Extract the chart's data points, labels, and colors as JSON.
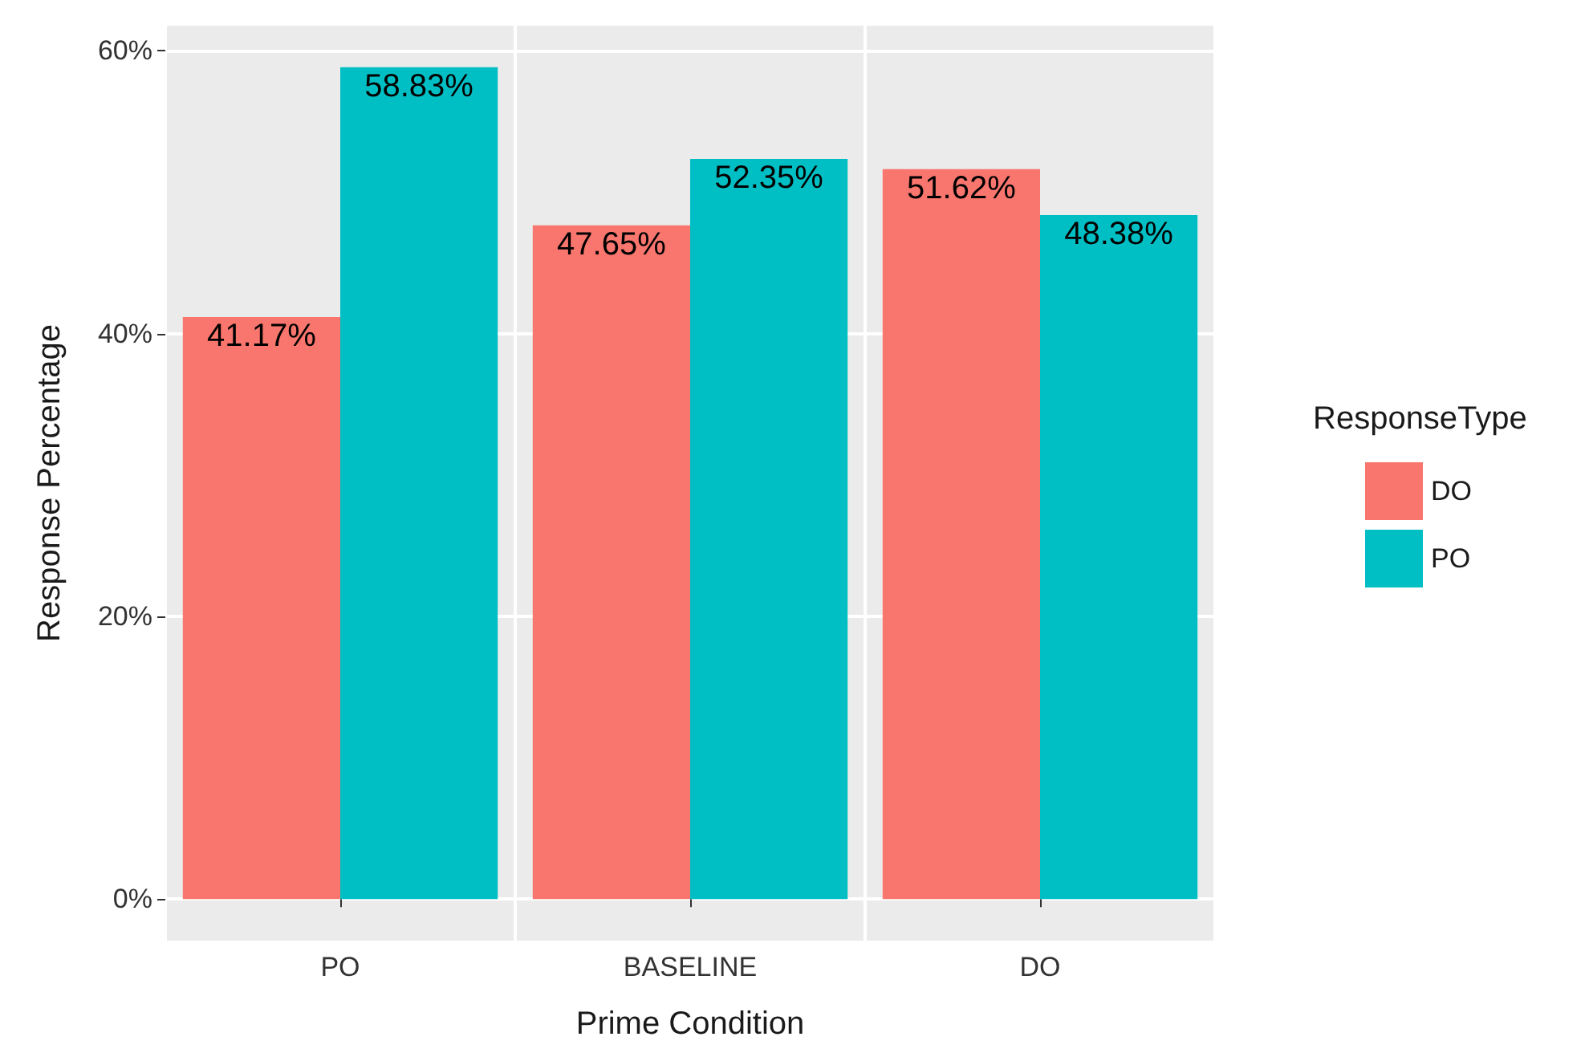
{
  "chart_data": {
    "type": "bar",
    "xlabel": "Prime Condition",
    "ylabel": "Response Percentage",
    "legend_title": "ResponseType",
    "categories": [
      "PO",
      "BASELINE",
      "DO"
    ],
    "series": [
      {
        "name": "DO",
        "color": "#f8766d",
        "values": [
          41.17,
          47.65,
          51.62
        ],
        "value_labels": [
          "41.17%",
          "47.65%",
          "51.62%"
        ]
      },
      {
        "name": "PO",
        "color": "#00bfc4",
        "values": [
          58.83,
          52.35,
          48.38
        ],
        "value_labels": [
          "58.83%",
          "52.35%",
          "48.38%"
        ]
      }
    ],
    "ylim": [
      -2.94,
      61.77
    ],
    "yticks": [
      {
        "value": 0,
        "label": "0%"
      },
      {
        "value": 20,
        "label": "20%"
      },
      {
        "value": 40,
        "label": "40%"
      },
      {
        "value": 60,
        "label": "60%"
      }
    ],
    "grid": true,
    "legend": "right"
  }
}
